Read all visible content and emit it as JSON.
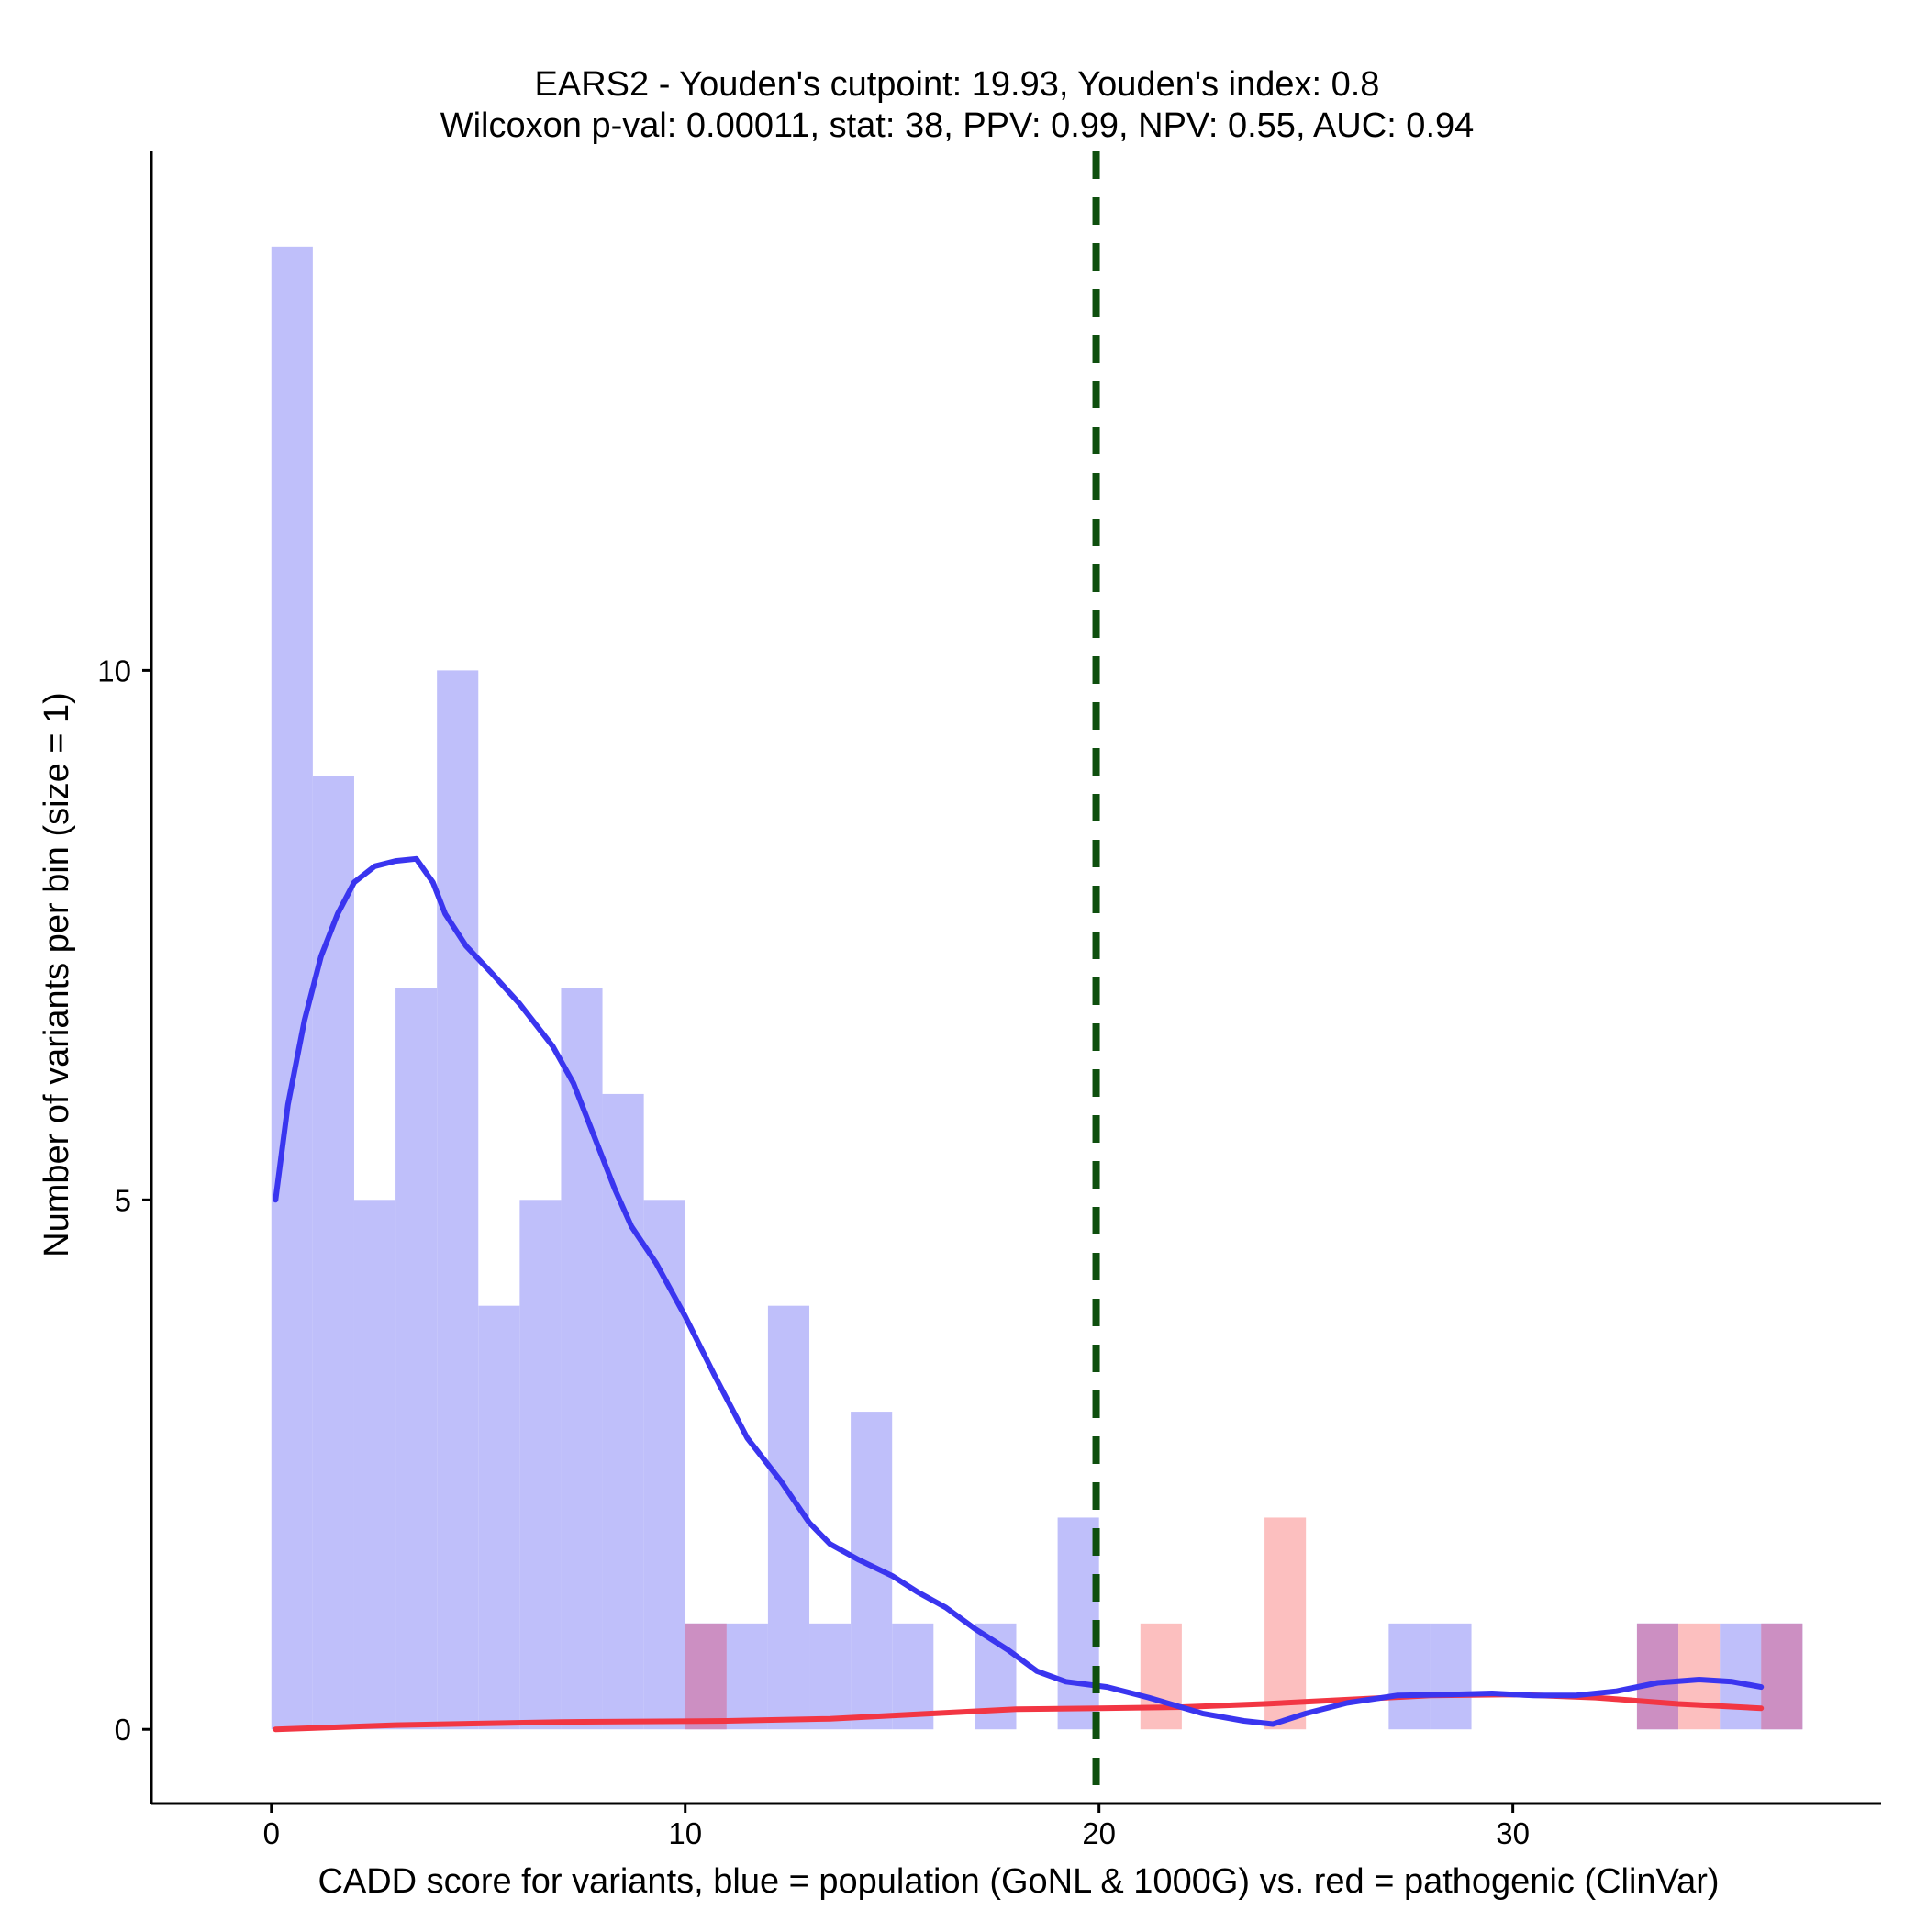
{
  "chart_data": {
    "type": "histogram",
    "title_line1": "EARS2 - Youden's cutpoint: 19.93, Youden's index: 0.8",
    "title_line2": "Wilcoxon p-val: 0.00011, stat: 38, PPV: 0.99, NPV: 0.55, AUC: 0.94",
    "xlabel": "CADD score for variants, blue = population (GoNL & 1000G) vs. red = pathogenic (ClinVar)",
    "ylabel": "Number of variants per bin (size = 1)",
    "xlim": [
      -2.9,
      38.9
    ],
    "ylim": [
      -0.7,
      14.9
    ],
    "x_ticks": [
      0,
      10,
      20,
      30
    ],
    "x_tick_labels": [
      "0",
      "10",
      "20",
      "30"
    ],
    "y_ticks": [
      0,
      5,
      10
    ],
    "y_tick_labels": [
      "0",
      "5",
      "10"
    ],
    "bin_width": 1,
    "cutpoint": 19.93,
    "colors": {
      "population_bar": "#bfbffa",
      "pathogenic_bar": "#fcbfbf",
      "overlap_bar": "#cc8fc2",
      "population_line": "#3a35ef",
      "pathogenic_line": "#f23643",
      "cutpoint_line": "#0e4f0e",
      "axis": "#000000"
    },
    "series": [
      {
        "name": "population (GoNL & 1000G)",
        "bins": [
          {
            "x": 0,
            "count": 14
          },
          {
            "x": 1,
            "count": 9
          },
          {
            "x": 2,
            "count": 5
          },
          {
            "x": 3,
            "count": 7
          },
          {
            "x": 4,
            "count": 10
          },
          {
            "x": 5,
            "count": 4
          },
          {
            "x": 6,
            "count": 5
          },
          {
            "x": 7,
            "count": 7
          },
          {
            "x": 8,
            "count": 6
          },
          {
            "x": 9,
            "count": 5
          },
          {
            "x": 10,
            "count": 1
          },
          {
            "x": 11,
            "count": 1
          },
          {
            "x": 12,
            "count": 4
          },
          {
            "x": 13,
            "count": 1
          },
          {
            "x": 14,
            "count": 3
          },
          {
            "x": 15,
            "count": 1
          },
          {
            "x": 17,
            "count": 1
          },
          {
            "x": 19,
            "count": 2
          },
          {
            "x": 27,
            "count": 1
          },
          {
            "x": 28,
            "count": 1
          },
          {
            "x": 33,
            "count": 1
          },
          {
            "x": 35,
            "count": 1
          },
          {
            "x": 36,
            "count": 1
          }
        ],
        "density_curve": [
          [
            0.1,
            5.0
          ],
          [
            0.4,
            5.9
          ],
          [
            0.8,
            6.7
          ],
          [
            1.2,
            7.3
          ],
          [
            1.6,
            7.7
          ],
          [
            2.0,
            8.0
          ],
          [
            2.5,
            8.15
          ],
          [
            3.0,
            8.2
          ],
          [
            3.5,
            8.22
          ],
          [
            3.9,
            8.0
          ],
          [
            4.2,
            7.7
          ],
          [
            4.7,
            7.4
          ],
          [
            5.3,
            7.15
          ],
          [
            6.0,
            6.85
          ],
          [
            6.8,
            6.45
          ],
          [
            7.3,
            6.1
          ],
          [
            7.7,
            5.7
          ],
          [
            8.3,
            5.1
          ],
          [
            8.7,
            4.75
          ],
          [
            9.3,
            4.4
          ],
          [
            10.0,
            3.9
          ],
          [
            10.7,
            3.35
          ],
          [
            11.5,
            2.75
          ],
          [
            12.3,
            2.35
          ],
          [
            13.0,
            1.95
          ],
          [
            13.5,
            1.75
          ],
          [
            14.2,
            1.6
          ],
          [
            15.0,
            1.45
          ],
          [
            15.6,
            1.3
          ],
          [
            16.3,
            1.15
          ],
          [
            17.0,
            0.95
          ],
          [
            17.8,
            0.75
          ],
          [
            18.5,
            0.55
          ],
          [
            19.2,
            0.45
          ],
          [
            20.2,
            0.4
          ],
          [
            21.2,
            0.3
          ],
          [
            22.5,
            0.15
          ],
          [
            23.5,
            0.08
          ],
          [
            24.2,
            0.05
          ],
          [
            25.0,
            0.15
          ],
          [
            26.0,
            0.25
          ],
          [
            27.2,
            0.32
          ],
          [
            28.5,
            0.33
          ],
          [
            29.5,
            0.34
          ],
          [
            30.5,
            0.32
          ],
          [
            31.5,
            0.32
          ],
          [
            32.5,
            0.36
          ],
          [
            33.5,
            0.44
          ],
          [
            34.5,
            0.47
          ],
          [
            35.3,
            0.45
          ],
          [
            36.0,
            0.4
          ]
        ]
      },
      {
        "name": "pathogenic (ClinVar)",
        "bins": [
          {
            "x": 10,
            "count": 1
          },
          {
            "x": 21,
            "count": 1
          },
          {
            "x": 24,
            "count": 2
          },
          {
            "x": 33,
            "count": 1
          },
          {
            "x": 34,
            "count": 1
          },
          {
            "x": 36,
            "count": 1
          }
        ],
        "density_curve": [
          [
            0.1,
            0.0
          ],
          [
            3.0,
            0.04
          ],
          [
            7.0,
            0.07
          ],
          [
            11.0,
            0.08
          ],
          [
            13.5,
            0.1
          ],
          [
            16.0,
            0.15
          ],
          [
            18.0,
            0.19
          ],
          [
            20.0,
            0.2
          ],
          [
            22.0,
            0.21
          ],
          [
            24.0,
            0.24
          ],
          [
            26.0,
            0.28
          ],
          [
            28.0,
            0.32
          ],
          [
            30.0,
            0.33
          ],
          [
            32.0,
            0.3
          ],
          [
            34.0,
            0.24
          ],
          [
            36.0,
            0.2
          ]
        ]
      }
    ]
  }
}
